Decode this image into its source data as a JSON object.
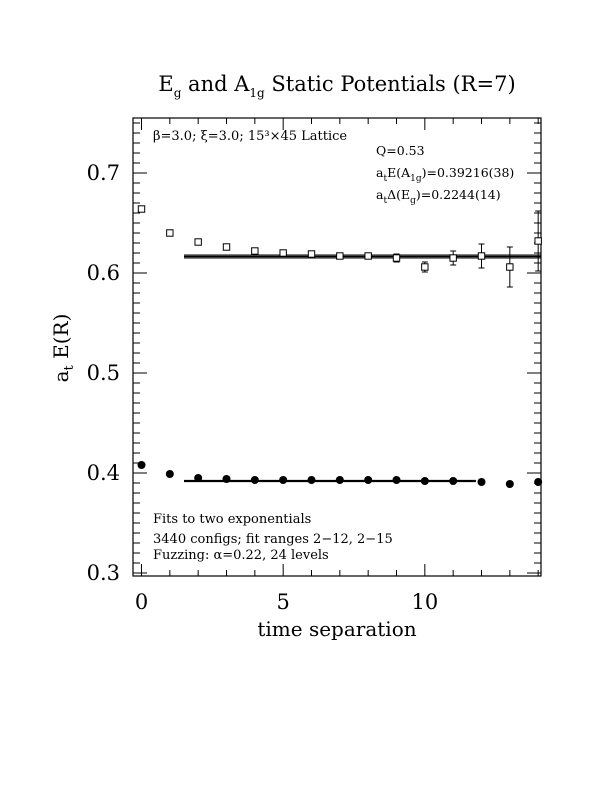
{
  "chart_data": {
    "type": "scatter",
    "title": {
      "base": "E",
      "sub1": "g",
      "mid": " and A",
      "sub2": "1g",
      "rest": " Static Potentials (R=7)"
    },
    "xlabel": "time separation",
    "ylabel": {
      "base": "a",
      "sub": "t",
      "rest": " E(R)"
    },
    "xlim": [
      -0.3,
      14.1
    ],
    "ylim": [
      0.297,
      0.755
    ],
    "x_ticks": [
      0,
      5,
      10
    ],
    "y_ticks": [
      0.3,
      0.4,
      0.5,
      0.6,
      0.7
    ],
    "x_tick_labels": [
      "0",
      "5",
      "10"
    ],
    "y_tick_labels": [
      "0.3",
      "0.4",
      "0.5",
      "0.6",
      "0.7"
    ],
    "grid": false,
    "lattice_note": "β=3.0; ξ=3.0; 15³×45 Lattice",
    "annotations": {
      "q": "Q=0.53",
      "a1g": {
        "pre": "a",
        "sub1": "t",
        "mid": "E(A",
        "sub2": "1g",
        "post": ")=0.39216(38)"
      },
      "eg": {
        "pre": "a",
        "sub1": "t",
        "mid": "Δ(E",
        "sub2": "g",
        "post": ")=0.2244(14)"
      }
    },
    "fit_notes": [
      "Fits to two exponentials",
      "3440 configs; fit ranges 2−12, 2−15",
      "Fuzzing: α=0.22, 24 levels"
    ],
    "series": [
      {
        "marker": "filled-circle",
        "x": [
          0,
          1,
          2,
          3,
          4,
          5,
          6,
          7,
          8,
          9,
          10,
          11,
          12,
          13,
          14
        ],
        "y": [
          0.408,
          0.399,
          0.395,
          0.394,
          0.393,
          0.393,
          0.393,
          0.393,
          0.393,
          0.393,
          0.392,
          0.392,
          0.391,
          0.389,
          0.391
        ],
        "err": [
          0.0008,
          0.0008,
          0.0008,
          0.0008,
          0.0008,
          0.0009,
          0.001,
          0.001,
          0.0012,
          0.0013,
          0.0015,
          0.0018,
          0.002,
          0.0025,
          0.003
        ]
      },
      {
        "marker": "open-square",
        "x": [
          0,
          1,
          2,
          3,
          4,
          5,
          6,
          7,
          8,
          9,
          10,
          11,
          12,
          13,
          14
        ],
        "y": [
          0.664,
          0.64,
          0.631,
          0.626,
          0.622,
          0.62,
          0.619,
          0.617,
          0.617,
          0.615,
          0.606,
          0.615,
          0.617,
          0.606,
          0.632
        ],
        "err": [
          0.0015,
          0.0015,
          0.0015,
          0.0015,
          0.002,
          0.002,
          0.002,
          0.003,
          0.003,
          0.004,
          0.005,
          0.007,
          0.012,
          0.02,
          0.03
        ]
      }
    ],
    "fit_lines": [
      {
        "x": [
          1.5,
          11.8
        ],
        "y": [
          0.392,
          0.392
        ],
        "band": 0.0006
      },
      {
        "x": [
          1.5,
          14.1
        ],
        "y": [
          0.6165,
          0.6165
        ],
        "band": 0.0015
      }
    ]
  }
}
